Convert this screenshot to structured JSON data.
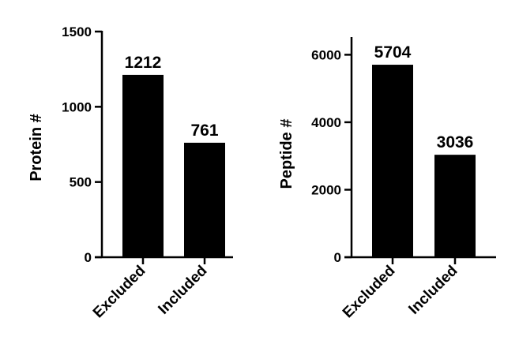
{
  "chart_data": [
    {
      "type": "bar",
      "categories": [
        "Excluded",
        "Included"
      ],
      "values": [
        1212,
        761
      ],
      "data_labels": [
        "1212",
        "761"
      ],
      "title": "",
      "xlabel": "",
      "ylabel": "Protein #",
      "ylim": [
        0,
        1500
      ],
      "yticks": [
        0,
        500,
        1000,
        1500
      ],
      "ytick_labels": [
        "0",
        "500",
        "1000",
        "1500"
      ],
      "bar_color": "#000000",
      "grid": false
    },
    {
      "type": "bar",
      "categories": [
        "Excluded",
        "Included"
      ],
      "values": [
        5704,
        3036
      ],
      "data_labels": [
        "5704",
        "3036"
      ],
      "title": "",
      "xlabel": "",
      "ylabel": "Peptide #",
      "ylim": [
        0,
        6500
      ],
      "yticks": [
        0,
        2000,
        4000,
        6000
      ],
      "ytick_labels": [
        "0",
        "2000",
        "4000",
        "6000"
      ],
      "bar_color": "#000000",
      "grid": false
    }
  ]
}
